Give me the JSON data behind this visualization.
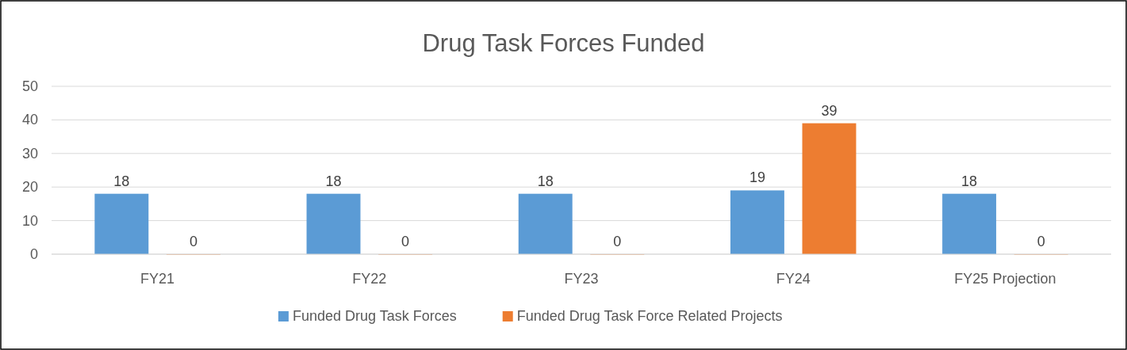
{
  "chart_data": {
    "type": "bar",
    "title": "Drug Task Forces Funded",
    "categories": [
      "FY21",
      "FY22",
      "FY23",
      "FY24",
      "FY25 Projection"
    ],
    "series": [
      {
        "name": "Funded Drug Task Forces",
        "color": "#5b9bd5",
        "values": [
          18,
          18,
          18,
          19,
          18
        ]
      },
      {
        "name": "Funded Drug Task Force Related Projects",
        "color": "#ed7d31",
        "values": [
          0,
          0,
          0,
          39,
          0
        ]
      }
    ],
    "ylim": [
      0,
      50
    ],
    "yticks": [
      0,
      10,
      20,
      30,
      40,
      50
    ],
    "grid": "y",
    "legend": "bottom",
    "data_labels": true
  }
}
